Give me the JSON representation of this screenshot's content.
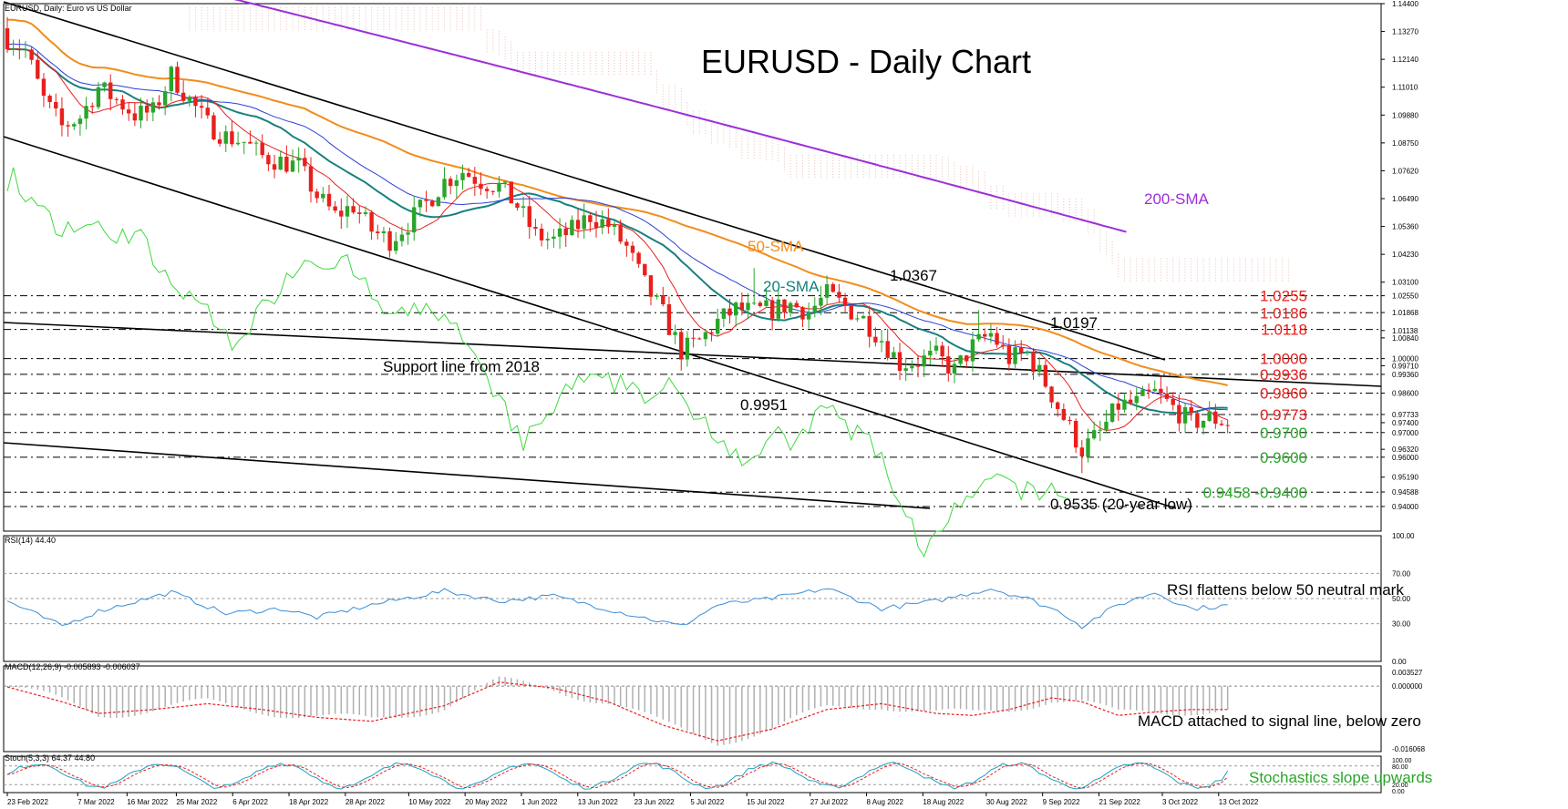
{
  "chart_data": {
    "type": "candlestick",
    "symbol_header": "EURUSD, Daily:  Euro vs US Dollar",
    "title": "EURUSD - Daily Chart",
    "ylim": [
      0.93,
      1.144
    ],
    "y_ticks": [
      "1.14400",
      "1.13270",
      "1.12140",
      "1.11010",
      "1.09880",
      "1.08750",
      "1.07620",
      "1.06490",
      "1.05360",
      "1.04230",
      "1.03100",
      "1.02550",
      "1.01868",
      "1.01138",
      "1.00840",
      "1.00000",
      "0.99710",
      "0.99360",
      "0.98600",
      "0.97733",
      "0.97400",
      "0.97000",
      "0.96320",
      "0.96000",
      "0.95190",
      "0.94588",
      "0.94000"
    ],
    "x_ticks": [
      "23 Feb 2022",
      "7 Mar 2022",
      "16 Mar 2022",
      "25 Mar 2022",
      "6 Apr 2022",
      "18 Apr 2022",
      "28 Apr 2022",
      "10 May 2022",
      "20 May 2022",
      "1 Jun 2022",
      "13 Jun 2022",
      "23 Jun 2022",
      "5 Jul 2022",
      "15 Jul 2022",
      "27 Jul 2022",
      "8 Aug 2022",
      "18 Aug 2022",
      "30 Aug 2022",
      "9 Sep 2022",
      "21 Sep 2022",
      "3 Oct 2022",
      "13 Oct 2022"
    ],
    "levels": [
      {
        "value": 1.0255,
        "label": "1.0255",
        "color": "#e8201c"
      },
      {
        "value": 1.0186,
        "label": "1.0186",
        "color": "#e8201c"
      },
      {
        "value": 1.0118,
        "label": "1.0118",
        "color": "#e8201c"
      },
      {
        "value": 1.0,
        "label": "1.0000",
        "color": "#e8201c"
      },
      {
        "value": 0.9936,
        "label": "0.9936",
        "color": "#e8201c"
      },
      {
        "value": 0.986,
        "label": "0.9860",
        "color": "#e8201c"
      },
      {
        "value": 0.9773,
        "label": "0.9773",
        "color": "#e8201c"
      },
      {
        "value": 0.97,
        "label": "0.9700",
        "color": "#2aa52a"
      },
      {
        "value": 0.96,
        "label": "0.9600",
        "color": "#2aa52a"
      },
      {
        "value": 0.9458,
        "label": "0.9458 -0.9400",
        "color": "#2aa52a"
      },
      {
        "value": 0.94,
        "label": "",
        "color": "#2aa52a"
      }
    ],
    "annotations": [
      "1.0367",
      "1.0197",
      "0.9951",
      "0.9535 (20-year low)",
      "Support line from 2018"
    ],
    "indicator_labels": {
      "sma200": "200-SMA",
      "sma50": "50-SMA",
      "sma20": "20-SMA"
    },
    "colors": {
      "bull": "#2aa52a",
      "bear": "#e8201c",
      "sma200": "#9b30d9",
      "sma50": "#f28c1a",
      "sma20": "#17807f",
      "tenkan": "#e8201c",
      "kijun": "#2b3fd6",
      "chikou": "#3fd93f",
      "rsi": "#3a8fd6",
      "macd_hist": "#b0b0b0",
      "signal": "#e8201c",
      "stoch_main": "#20a0c0",
      "stoch_signal": "#e8201c"
    },
    "price_key_points": [
      [
        0,
        1.13
      ],
      [
        3,
        1.125
      ],
      [
        6,
        1.105
      ],
      [
        9,
        1.094
      ],
      [
        12,
        1.098
      ],
      [
        15,
        1.11
      ],
      [
        18,
        1.105
      ],
      [
        21,
        1.099
      ],
      [
        24,
        1.1
      ],
      [
        27,
        1.115
      ],
      [
        30,
        1.105
      ],
      [
        33,
        1.095
      ],
      [
        36,
        1.09
      ],
      [
        39,
        1.088
      ],
      [
        42,
        1.082
      ],
      [
        45,
        1.08
      ],
      [
        48,
        1.078
      ],
      [
        51,
        1.066
      ],
      [
        54,
        1.058
      ],
      [
        57,
        1.062
      ],
      [
        60,
        1.052
      ],
      [
        63,
        1.048
      ],
      [
        66,
        1.055
      ],
      [
        69,
        1.063
      ],
      [
        72,
        1.072
      ],
      [
        75,
        1.076
      ],
      [
        78,
        1.072
      ],
      [
        81,
        1.07
      ],
      [
        84,
        1.062
      ],
      [
        87,
        1.05
      ],
      [
        90,
        1.048
      ],
      [
        93,
        1.052
      ],
      [
        96,
        1.058
      ],
      [
        99,
        1.054
      ],
      [
        102,
        1.045
      ],
      [
        105,
        1.03
      ],
      [
        108,
        1.018
      ],
      [
        111,
        1.003
      ],
      [
        114,
        1.007
      ],
      [
        117,
        1.015
      ],
      [
        120,
        1.02
      ],
      [
        123,
        1.019
      ],
      [
        126,
        1.02
      ],
      [
        129,
        1.022
      ],
      [
        132,
        1.019
      ],
      [
        135,
        1.026
      ],
      [
        138,
        1.021
      ],
      [
        141,
        1.016
      ],
      [
        144,
        1.008
      ],
      [
        147,
        0.998
      ],
      [
        150,
        0.999
      ],
      [
        153,
        1.001
      ],
      [
        156,
        0.995
      ],
      [
        159,
        1.005
      ],
      [
        162,
        1.01
      ],
      [
        165,
        1.0
      ],
      [
        168,
        1.002
      ],
      [
        171,
        0.99
      ],
      [
        174,
        0.976
      ],
      [
        177,
        0.963
      ],
      [
        180,
        0.97
      ],
      [
        183,
        0.981
      ],
      [
        186,
        0.982
      ],
      [
        189,
        0.986
      ],
      [
        192,
        0.98
      ],
      [
        195,
        0.974
      ],
      [
        198,
        0.976
      ],
      [
        201,
        0.974
      ]
    ],
    "rsi": {
      "label": "RSI(14) 44.40",
      "ylim": [
        0,
        100
      ],
      "ticks": [
        "100.00",
        "70.00",
        "50.00",
        "30.00",
        "0.00"
      ],
      "levels": [
        70,
        50,
        30
      ],
      "last": 44.4,
      "key_points": [
        [
          0,
          48
        ],
        [
          9,
          28
        ],
        [
          15,
          40
        ],
        [
          27,
          55
        ],
        [
          36,
          38
        ],
        [
          45,
          42
        ],
        [
          51,
          35
        ],
        [
          60,
          45
        ],
        [
          72,
          56
        ],
        [
          81,
          48
        ],
        [
          90,
          52
        ],
        [
          102,
          38
        ],
        [
          111,
          28
        ],
        [
          117,
          45
        ],
        [
          126,
          50
        ],
        [
          135,
          58
        ],
        [
          144,
          42
        ],
        [
          153,
          48
        ],
        [
          162,
          58
        ],
        [
          168,
          50
        ],
        [
          174,
          38
        ],
        [
          177,
          28
        ],
        [
          183,
          45
        ],
        [
          189,
          55
        ],
        [
          195,
          42
        ],
        [
          201,
          44.4
        ]
      ]
    },
    "macd": {
      "label": "MACD(12,26,9) -0.005893 -0.006037",
      "ylim": [
        -0.016068,
        0.003527
      ],
      "ticks": [
        "0.003527",
        "0.000000",
        "-0.016068"
      ],
      "macd_last": -0.005893,
      "signal_last": -0.006037,
      "signal_key_points": [
        [
          0,
          -0.0002
        ],
        [
          9,
          -0.004
        ],
        [
          15,
          -0.007
        ],
        [
          24,
          -0.006
        ],
        [
          33,
          -0.0045
        ],
        [
          42,
          -0.006
        ],
        [
          51,
          -0.008
        ],
        [
          60,
          -0.009
        ],
        [
          72,
          -0.005
        ],
        [
          81,
          0.001
        ],
        [
          90,
          -0.0005
        ],
        [
          99,
          -0.004
        ],
        [
          108,
          -0.01
        ],
        [
          117,
          -0.014
        ],
        [
          126,
          -0.011
        ],
        [
          135,
          -0.006
        ],
        [
          144,
          -0.0045
        ],
        [
          153,
          -0.007
        ],
        [
          159,
          -0.0075
        ],
        [
          165,
          -0.006
        ],
        [
          172,
          -0.003
        ],
        [
          177,
          -0.004
        ],
        [
          183,
          -0.0075
        ],
        [
          190,
          -0.0065
        ],
        [
          195,
          -0.006
        ],
        [
          201,
          -0.006
        ]
      ]
    },
    "stoch": {
      "label": "Stoch(5,3,3) 64.37 44.80",
      "ylim": [
        0,
        100
      ],
      "ticks": [
        "100.00",
        "80.00",
        "20.00",
        "0.00"
      ],
      "main_last": 64.37,
      "signal_last": 44.8
    },
    "texts": {
      "rsi_note": "RSI flattens below 50 neutral mark",
      "macd_note": "MACD attached to signal line, below zero",
      "stoch_note": "Stochastics slope upwards"
    }
  }
}
